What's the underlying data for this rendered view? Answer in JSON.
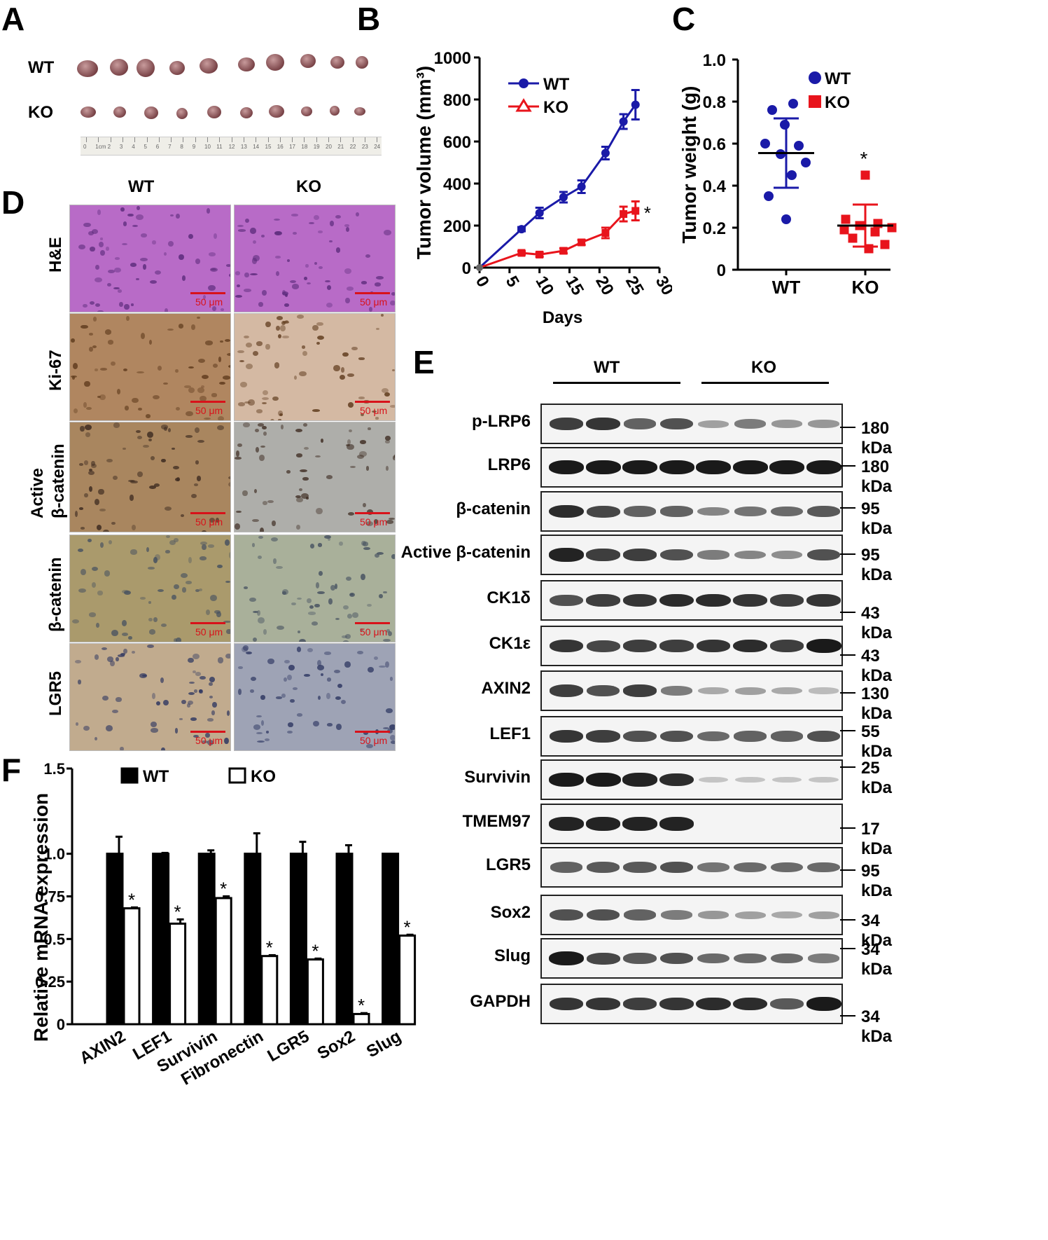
{
  "panels": {
    "a": {
      "letter": "A",
      "rows": [
        "WT",
        "KO"
      ],
      "ruler_ticks": [
        "0",
        "1cm",
        "2",
        "3",
        "4",
        "5",
        "6",
        "7",
        "8",
        "9",
        "10",
        "11",
        "12",
        "13",
        "14",
        "15",
        "16",
        "17",
        "18",
        "19",
        "20",
        "21",
        "22",
        "23",
        "24"
      ]
    },
    "b": {
      "letter": "B"
    },
    "c": {
      "letter": "C"
    },
    "d": {
      "letter": "D",
      "columns": [
        "WT",
        "KO"
      ],
      "rows": [
        {
          "label": "H&E",
          "label2": ""
        },
        {
          "label": "Ki-67",
          "label2": ""
        },
        {
          "label": "Active",
          "label2": "β-catenin"
        },
        {
          "label": "β-catenin",
          "label2": ""
        },
        {
          "label": "LGR5",
          "label2": ""
        }
      ],
      "scale_label": "50 μm",
      "colors": {
        "he": "#b86bc7",
        "ki67_wt": "#b08660",
        "ki67_ko": "#d4b9a3",
        "act_wt": "#a9865f",
        "act_ko": "#aeaeaa",
        "bcat_wt": "#aa9a6c",
        "bcat_ko": "#a9b09a",
        "lgr5_wt": "#c1ab8e",
        "lgr5_ko": "#9ea3b5"
      }
    },
    "e": {
      "letter": "E",
      "groups": [
        "WT",
        "KO"
      ],
      "blots": [
        {
          "name": "p-LRP6",
          "kda": "180 kDa",
          "intensity": [
            0.8,
            0.85,
            0.6,
            0.7,
            0.25,
            0.45,
            0.3,
            0.3
          ]
        },
        {
          "name": "LRP6",
          "kda": "180 kDa",
          "intensity": [
            1,
            1,
            1,
            1,
            1,
            1,
            1,
            1
          ]
        },
        {
          "name": "β-catenin",
          "kda": "95 kDa",
          "intensity": [
            0.9,
            0.75,
            0.6,
            0.6,
            0.4,
            0.5,
            0.55,
            0.65
          ]
        },
        {
          "name": "Active β-catenin",
          "kda": "95 kDa",
          "intensity": [
            0.95,
            0.8,
            0.8,
            0.7,
            0.45,
            0.4,
            0.35,
            0.7
          ]
        },
        {
          "name": "CK1δ",
          "kda": "43 kDa",
          "intensity": [
            0.7,
            0.8,
            0.85,
            0.9,
            0.9,
            0.85,
            0.8,
            0.85
          ]
        },
        {
          "name": "CK1ε",
          "kda": "43 kDa",
          "intensity": [
            0.85,
            0.75,
            0.8,
            0.8,
            0.85,
            0.9,
            0.8,
            1
          ]
        },
        {
          "name": "AXIN2",
          "kda": "130 kDa",
          "intensity": [
            0.8,
            0.7,
            0.8,
            0.45,
            0.2,
            0.25,
            0.2,
            0.1
          ]
        },
        {
          "name": "LEF1",
          "kda": "55 kDa",
          "intensity": [
            0.85,
            0.8,
            0.7,
            0.7,
            0.55,
            0.6,
            0.6,
            0.7
          ]
        },
        {
          "name": "Survivin",
          "kda": "25 kDa",
          "intensity": [
            1,
            1,
            0.95,
            0.9,
            0.05,
            0.05,
            0.05,
            0.05
          ]
        },
        {
          "name": "TMEM97",
          "kda": "17 kDa",
          "intensity": [
            0.95,
            0.95,
            0.95,
            0.95,
            0,
            0,
            0,
            0
          ]
        },
        {
          "name": "LGR5",
          "kda": "95 kDa",
          "intensity": [
            0.6,
            0.65,
            0.65,
            0.7,
            0.5,
            0.55,
            0.55,
            0.55
          ]
        },
        {
          "name": "Sox2",
          "kda": "34 kDa",
          "intensity": [
            0.7,
            0.7,
            0.6,
            0.45,
            0.3,
            0.25,
            0.2,
            0.25
          ]
        },
        {
          "name": "Slug",
          "kda": "34 kDa",
          "intensity": [
            1,
            0.75,
            0.65,
            0.7,
            0.55,
            0.55,
            0.55,
            0.45
          ]
        },
        {
          "name": "GAPDH",
          "kda": "34 kDa",
          "intensity": [
            0.85,
            0.85,
            0.8,
            0.85,
            0.9,
            0.9,
            0.65,
            1
          ]
        }
      ]
    },
    "f": {
      "letter": "F"
    }
  },
  "chart_data": [
    {
      "id": "B",
      "type": "line",
      "xlabel": "Days",
      "ylabel": "Tumor volume (mm³)",
      "xlim": [
        0,
        30
      ],
      "ylim": [
        0,
        1000
      ],
      "xticks": [
        0,
        5,
        10,
        15,
        20,
        25,
        30
      ],
      "yticks": [
        0,
        200,
        400,
        600,
        800,
        1000
      ],
      "significance": "*",
      "series": [
        {
          "name": "WT",
          "color": "#1a1aa8",
          "marker": "circle",
          "x": [
            0,
            7,
            10,
            14,
            17,
            21,
            24,
            26
          ],
          "y": [
            0,
            183,
            260,
            335,
            385,
            545,
            695,
            775
          ],
          "err": [
            0,
            10,
            25,
            25,
            30,
            30,
            35,
            70
          ]
        },
        {
          "name": "KO",
          "color": "#e8141c",
          "marker": "triangle",
          "x": [
            0,
            7,
            10,
            14,
            17,
            21,
            24,
            26
          ],
          "y": [
            0,
            70,
            62,
            80,
            120,
            165,
            255,
            270
          ],
          "err": [
            0,
            8,
            10,
            12,
            12,
            25,
            35,
            45
          ]
        }
      ]
    },
    {
      "id": "C",
      "type": "scatter",
      "ylabel": "Tumor weight (g)",
      "categories": [
        "WT",
        "KO"
      ],
      "ylim": [
        0,
        1.0
      ],
      "yticks": [
        "0",
        "0.2",
        "0.4",
        "0.6",
        "0.8",
        "1.0"
      ],
      "significance": "*",
      "series": [
        {
          "name": "WT",
          "color": "#1a1aa8",
          "marker": "circle",
          "points": [
            0.79,
            0.76,
            0.69,
            0.6,
            0.59,
            0.55,
            0.51,
            0.45,
            0.35,
            0.24
          ],
          "mean": 0.555,
          "sd_high": 0.72,
          "sd_low": 0.39
        },
        {
          "name": "KO",
          "color": "#e8141c",
          "marker": "square",
          "points": [
            0.45,
            0.24,
            0.22,
            0.21,
            0.2,
            0.19,
            0.18,
            0.15,
            0.12,
            0.1
          ],
          "mean": 0.21,
          "sd_high": 0.31,
          "sd_low": 0.11
        }
      ]
    },
    {
      "id": "F",
      "type": "bar",
      "ylabel": "Relative mRNA expression",
      "categories": [
        "AXIN2",
        "LEF1",
        "Survivin",
        "Fibronectin",
        "LGR5",
        "Sox2",
        "Slug"
      ],
      "ylim": [
        0,
        1.5
      ],
      "yticks": [
        "0",
        "0.25",
        "0.5",
        "0.75",
        "1.0",
        "1.5"
      ],
      "significance": "*",
      "series": [
        {
          "name": "WT",
          "color": "#000000",
          "fill": "solid",
          "values": [
            1.0,
            1.0,
            1.0,
            1.0,
            1.0,
            1.0,
            1.0
          ],
          "err": [
            0.1,
            0.005,
            0.02,
            0.12,
            0.07,
            0.05,
            0.0
          ]
        },
        {
          "name": "KO",
          "color": "#ffffff",
          "fill": "open",
          "values": [
            0.68,
            0.59,
            0.74,
            0.4,
            0.38,
            0.06,
            0.52
          ],
          "err": [
            0.005,
            0.025,
            0.01,
            0.005,
            0.005,
            0.005,
            0.005
          ]
        }
      ]
    }
  ]
}
